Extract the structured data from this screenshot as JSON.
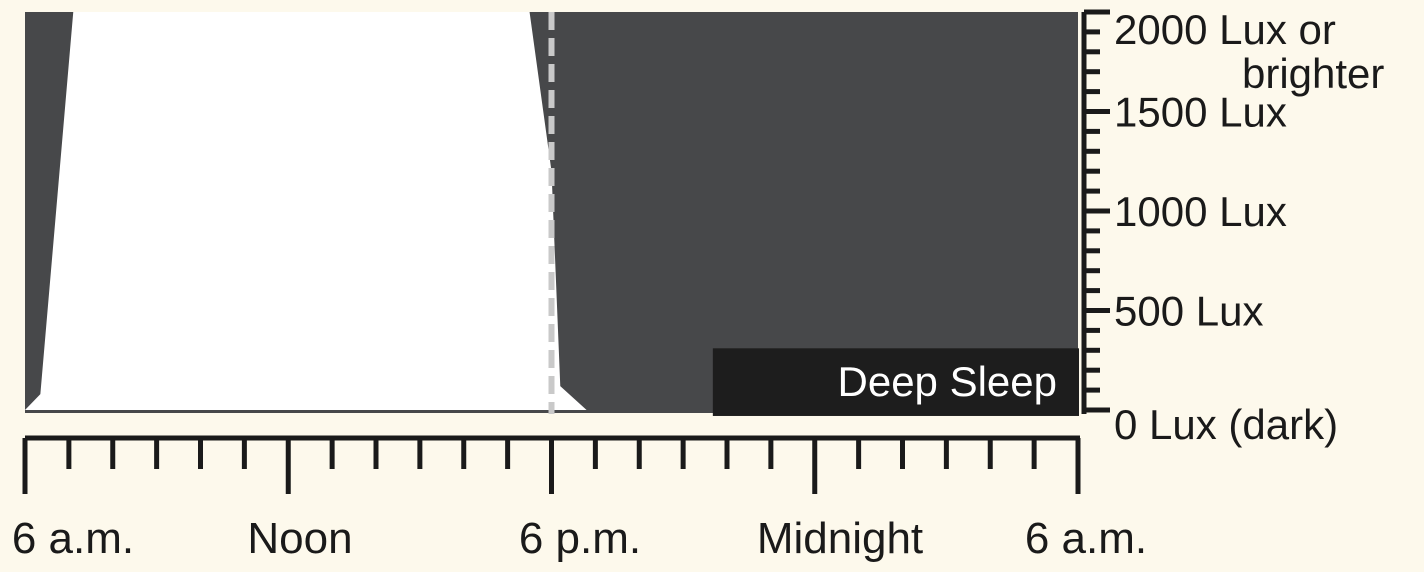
{
  "chart_data": {
    "type": "area",
    "title": "",
    "xlabel": "",
    "ylabel": "",
    "x_tick_labels": [
      "6 a.m.",
      "Noon",
      "6 p.m.",
      "Midnight",
      "6 a.m."
    ],
    "y_tick_labels": [
      {
        "value": 2000,
        "label": "2000 Lux or brighter"
      },
      {
        "value": 1500,
        "label": "1500 Lux"
      },
      {
        "value": 1000,
        "label": "1000 Lux"
      },
      {
        "value": 500,
        "label": "500 Lux"
      },
      {
        "value": 0,
        "label": "0 Lux (dark)"
      }
    ],
    "x_range_hours": [
      0,
      24
    ],
    "ylim": [
      0,
      2000
    ],
    "series": [
      {
        "x": [
          0,
          0.35,
          1.1,
          11.5,
          12.0,
          12.2,
          12.8,
          13.0,
          24
        ],
        "y": [
          0,
          80,
          2000,
          2000,
          1200,
          120,
          0,
          0,
          0
        ]
      }
    ],
    "annotations": [
      {
        "type": "vertical_dashed_line",
        "x": 12
      },
      {
        "type": "band",
        "x_start": 15.7,
        "x_end": 24,
        "y_start": -30,
        "y_end": 310,
        "text": "Deep Sleep"
      }
    ],
    "colors": {
      "background": "#fdf9ec",
      "dark": "#47484a",
      "light": "#ffffff",
      "band": "#1d1d1d",
      "dashed_line": "#c9c9c9",
      "axis": "#1a1a1a"
    },
    "grid": false,
    "legend": "none"
  }
}
